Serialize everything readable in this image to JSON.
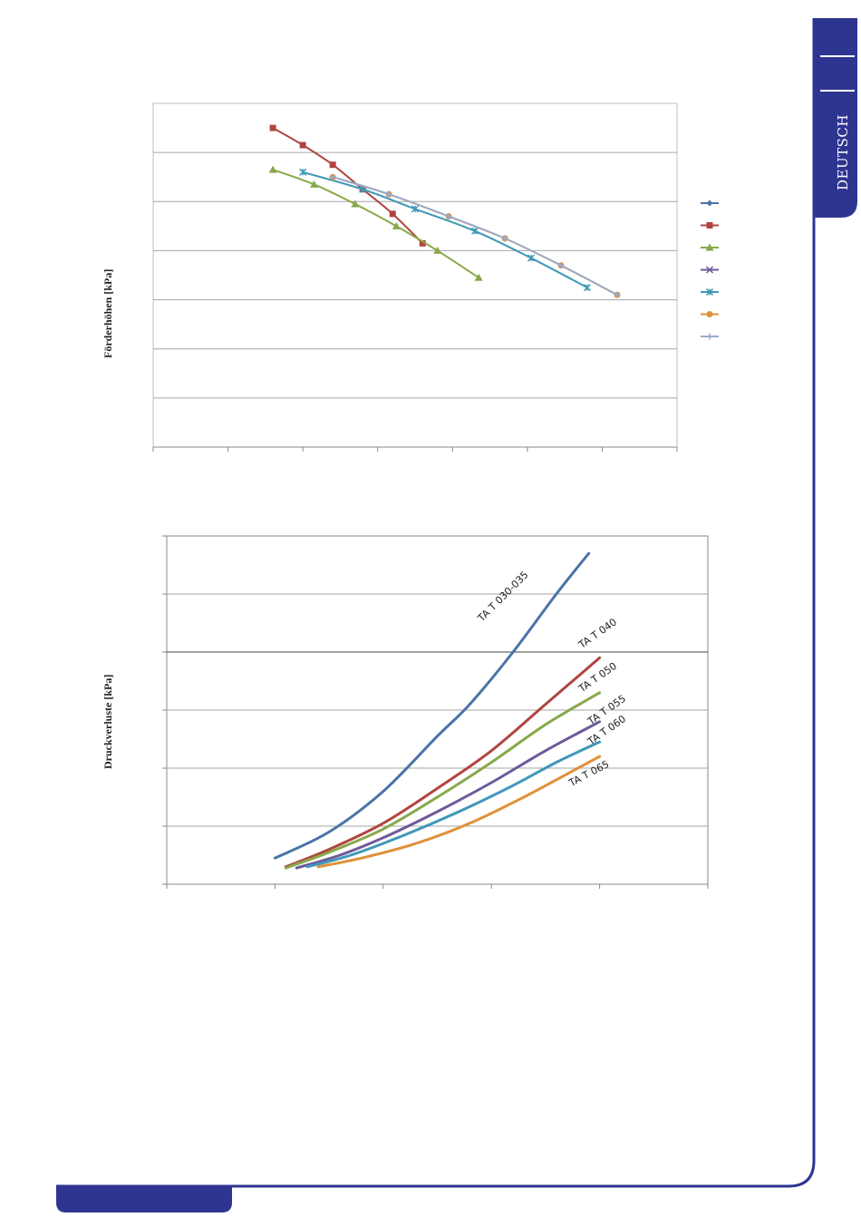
{
  "page": {
    "language_tab": "DEUTSCH",
    "colors": {
      "frame": "#2e3591",
      "background": "#ffffff"
    }
  },
  "chart_data": [
    {
      "type": "line",
      "title": "",
      "xlabel": "",
      "ylabel": "Förderhöhen [kPa]",
      "xlim": [
        0,
        7
      ],
      "ylim": [
        0,
        7
      ],
      "grid": true,
      "legend": "right",
      "series": [
        {
          "name": "",
          "color": "#4a74a8",
          "marker": "diamond",
          "x": [],
          "y": []
        },
        {
          "name": "",
          "color": "#b04540",
          "marker": "square",
          "x": [
            1.6,
            2.0,
            2.4,
            2.8,
            3.2,
            3.6
          ],
          "y": [
            6.5,
            6.15,
            5.75,
            5.25,
            4.75,
            4.15
          ]
        },
        {
          "name": "",
          "color": "#88a84a",
          "marker": "triangle",
          "x": [
            1.6,
            2.15,
            2.7,
            3.25,
            3.8,
            4.35
          ],
          "y": [
            5.65,
            5.35,
            4.95,
            4.5,
            4.0,
            3.45
          ]
        },
        {
          "name": "",
          "color": "#6e5a9a",
          "marker": "x",
          "x": [],
          "y": []
        },
        {
          "name": "",
          "color": "#3f98b8",
          "marker": "star",
          "x": [
            2.0,
            2.8,
            3.5,
            4.3,
            5.05,
            5.8
          ],
          "y": [
            5.6,
            5.25,
            4.85,
            4.4,
            3.85,
            3.25
          ]
        },
        {
          "name": "",
          "color": "#e0903a",
          "marker": "circle",
          "x": [
            2.4,
            3.15,
            3.95,
            4.7,
            5.45,
            6.2
          ],
          "y": [
            5.5,
            5.15,
            4.7,
            4.25,
            3.7,
            3.1
          ]
        },
        {
          "name": "",
          "color": "#9aaacb",
          "marker": "plus",
          "x": [
            2.4,
            3.15,
            3.95,
            4.7,
            5.45,
            6.2
          ],
          "y": [
            5.5,
            5.15,
            4.7,
            4.25,
            3.7,
            3.1
          ]
        }
      ]
    },
    {
      "type": "line",
      "title": "",
      "xlabel": "",
      "ylabel": "Druckverluste [kPa]",
      "xlim": [
        0,
        5
      ],
      "ylim": [
        0,
        6
      ],
      "grid": true,
      "legend": "none",
      "series": [
        {
          "name": "TA T 030-035",
          "color": "#4a74a8",
          "x": [
            1.0,
            1.5,
            2.0,
            2.5,
            2.8,
            3.2,
            3.6,
            3.9
          ],
          "y": [
            0.45,
            0.9,
            1.6,
            2.55,
            3.1,
            4.0,
            5.0,
            5.7
          ]
        },
        {
          "name": "TA T 040",
          "color": "#b04540",
          "x": [
            1.1,
            1.5,
            2.0,
            2.5,
            3.0,
            3.5,
            4.0
          ],
          "y": [
            0.3,
            0.6,
            1.05,
            1.65,
            2.3,
            3.1,
            3.9
          ]
        },
        {
          "name": "TA T 050",
          "color": "#88a84a",
          "x": [
            1.1,
            1.5,
            2.0,
            2.5,
            3.0,
            3.5,
            4.0
          ],
          "y": [
            0.28,
            0.55,
            0.95,
            1.5,
            2.1,
            2.75,
            3.3
          ]
        },
        {
          "name": "TA T 055",
          "color": "#6e5a9a",
          "x": [
            1.2,
            1.6,
            2.0,
            2.5,
            3.0,
            3.5,
            4.0
          ],
          "y": [
            0.28,
            0.5,
            0.8,
            1.25,
            1.75,
            2.3,
            2.8
          ]
        },
        {
          "name": "TA T 060",
          "color": "#3f98b8",
          "x": [
            1.3,
            1.7,
            2.2,
            2.7,
            3.2,
            3.6,
            4.0
          ],
          "y": [
            0.3,
            0.5,
            0.85,
            1.25,
            1.7,
            2.1,
            2.45
          ]
        },
        {
          "name": "TA T 065",
          "color": "#e0903a",
          "x": [
            1.4,
            1.8,
            2.3,
            2.8,
            3.3,
            3.7,
            4.0
          ],
          "y": [
            0.3,
            0.45,
            0.7,
            1.05,
            1.5,
            1.9,
            2.2
          ]
        }
      ]
    }
  ]
}
